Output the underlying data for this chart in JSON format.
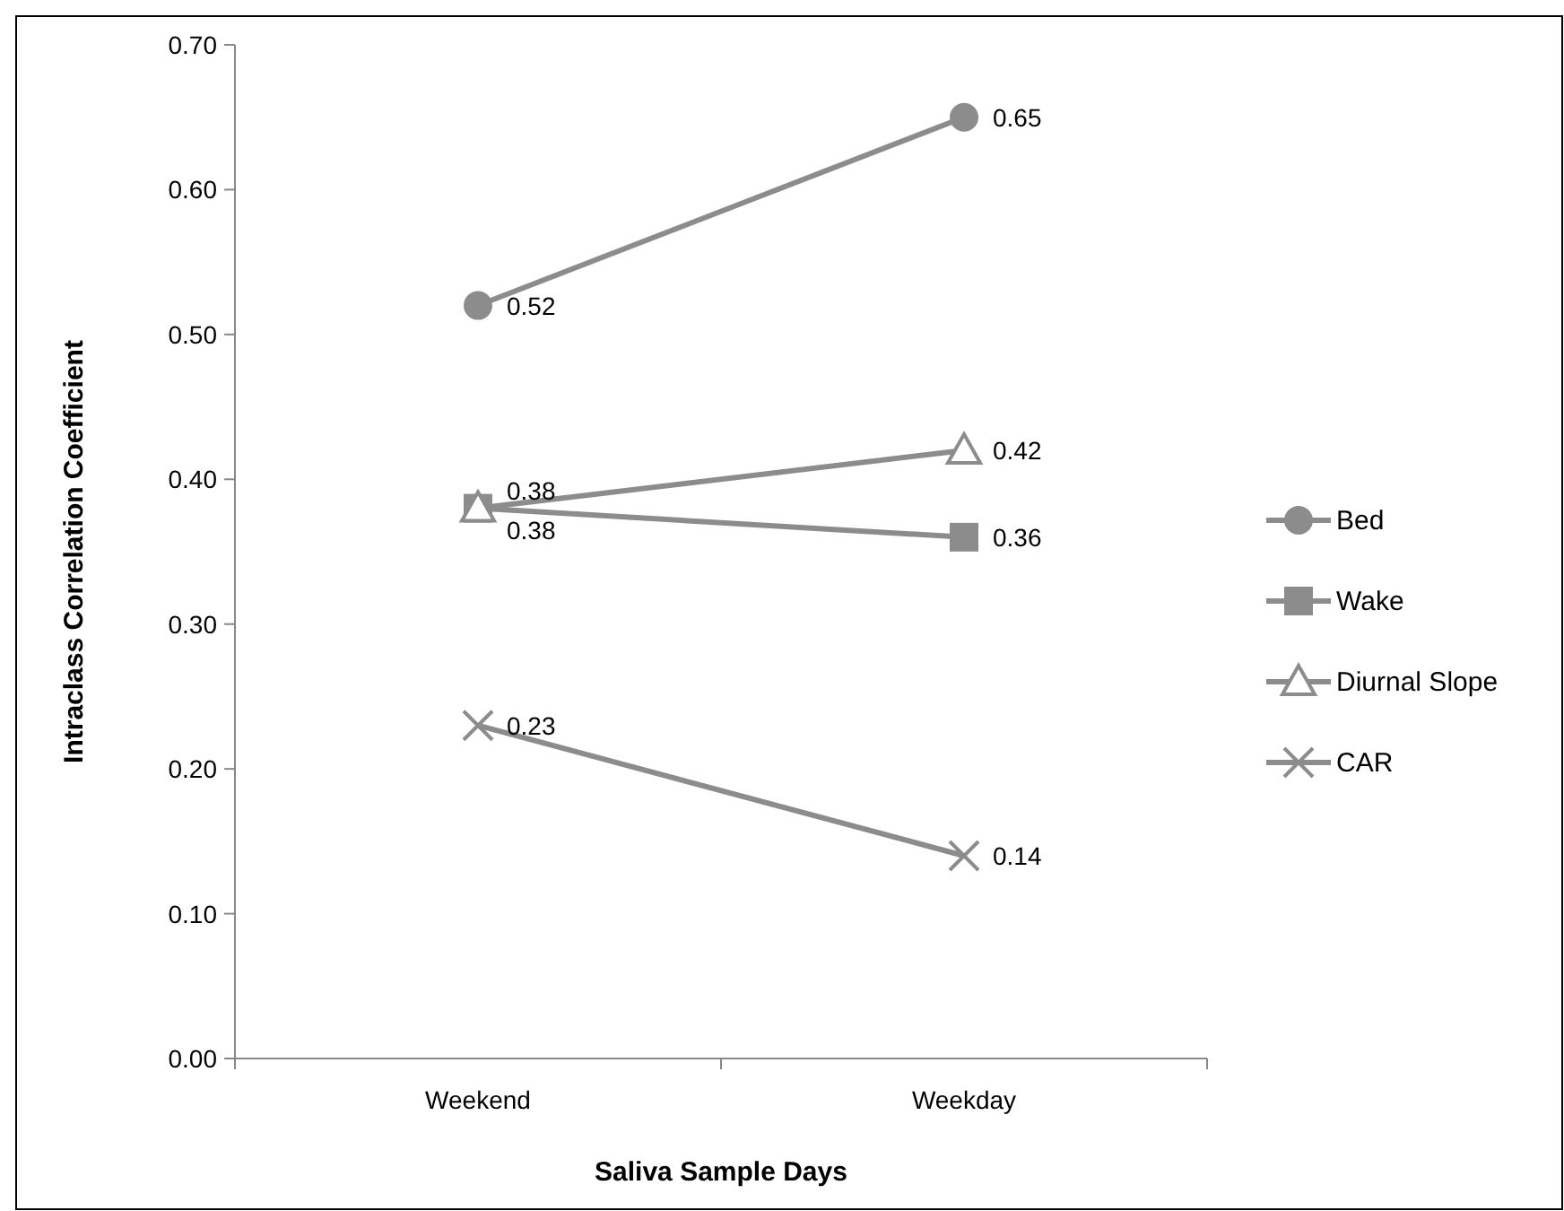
{
  "chart_data": {
    "type": "line",
    "xlabel": "Saliva Sample Days",
    "ylabel": "Intraclass Correlation Coefficient",
    "categories": [
      "Weekend",
      "Weekday"
    ],
    "series": [
      {
        "name": "Bed",
        "color": "#8c8c8c",
        "marker": "circle",
        "values": [
          0.52,
          0.65
        ]
      },
      {
        "name": "Wake",
        "color": "#8c8c8c",
        "marker": "square",
        "values": [
          0.38,
          0.36
        ]
      },
      {
        "name": "Diurnal Slope",
        "color": "#8c8c8c",
        "marker": "triangle",
        "values": [
          0.38,
          0.42
        ]
      },
      {
        "name": "CAR",
        "color": "#8c8c8c",
        "marker": "cross",
        "values": [
          0.23,
          0.14
        ]
      }
    ],
    "ylim": [
      0,
      0.7
    ],
    "yticks": [
      {
        "value": 0,
        "label": "0.00"
      },
      {
        "value": 0.1,
        "label": "0.10"
      },
      {
        "value": 0.2,
        "label": "0.20"
      },
      {
        "value": 0.3,
        "label": "0.30"
      },
      {
        "value": 0.4,
        "label": "0.40"
      },
      {
        "value": 0.5,
        "label": "0.50"
      },
      {
        "value": 0.6,
        "label": "0.60"
      },
      {
        "value": 0.7,
        "label": "0.70"
      }
    ],
    "grid": false,
    "legend": "right",
    "data_labels": true
  }
}
